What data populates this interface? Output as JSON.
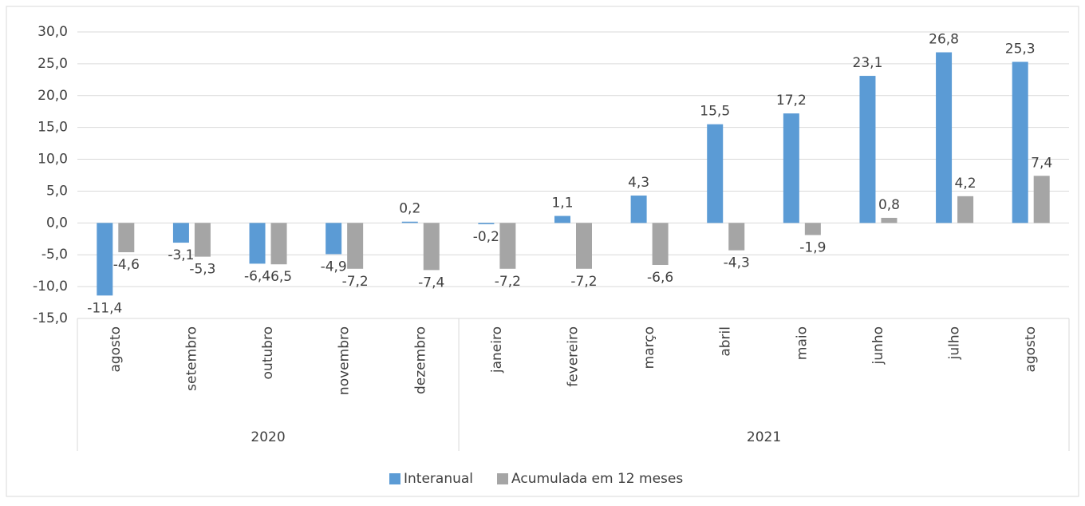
{
  "chart_data": {
    "type": "bar",
    "categories": [
      "agosto",
      "setembro",
      "outubro",
      "novembro",
      "dezembro",
      "janeiro",
      "fevereiro",
      "março",
      "abril",
      "maio",
      "junho",
      "julho",
      "agosto"
    ],
    "groups": [
      {
        "name": "2020",
        "size": 5
      },
      {
        "name": "2021",
        "size": 8
      }
    ],
    "series": [
      {
        "name": "Interanual",
        "color": "#5b9bd5",
        "values": [
          -11.4,
          -3.1,
          -6.4,
          -4.9,
          0.2,
          -0.2,
          1.1,
          4.3,
          15.5,
          17.2,
          23.1,
          26.8,
          25.3
        ],
        "value_labels": [
          "-11,4",
          "-3,1",
          "-6,4",
          "-4,9",
          "0,2",
          "-0,2",
          "1,1",
          "4,3",
          "15,5",
          "17,2",
          "23,1",
          "26,8",
          "25,3"
        ]
      },
      {
        "name": "Acumulada em 12 meses",
        "color": "#a5a5a5",
        "values": [
          -4.6,
          -5.3,
          -6.5,
          -7.2,
          -7.4,
          -7.2,
          -7.2,
          -6.6,
          -4.3,
          -1.9,
          0.8,
          4.2,
          7.4
        ],
        "value_labels": [
          "-4,6",
          "-5,3",
          "-6,5",
          "-7,2",
          "-7,4",
          "-7,2",
          "-7,2",
          "-6,6",
          "-4,3",
          "-1,9",
          "0,8",
          "4,2",
          "7,4"
        ]
      }
    ],
    "ylim": [
      -15,
      30
    ],
    "yticks": [
      {
        "value": -15,
        "label": "-15,0"
      },
      {
        "value": -10,
        "label": "-10,0"
      },
      {
        "value": -5,
        "label": "-5,0"
      },
      {
        "value": 0,
        "label": "0,0"
      },
      {
        "value": 5,
        "label": "5,0"
      },
      {
        "value": 10,
        "label": "10,0"
      },
      {
        "value": 15,
        "label": "15,0"
      },
      {
        "value": 20,
        "label": "20,0"
      },
      {
        "value": 25,
        "label": "25,0"
      },
      {
        "value": 30,
        "label": "30,0"
      }
    ],
    "grid": true,
    "legend": "bottom"
  }
}
